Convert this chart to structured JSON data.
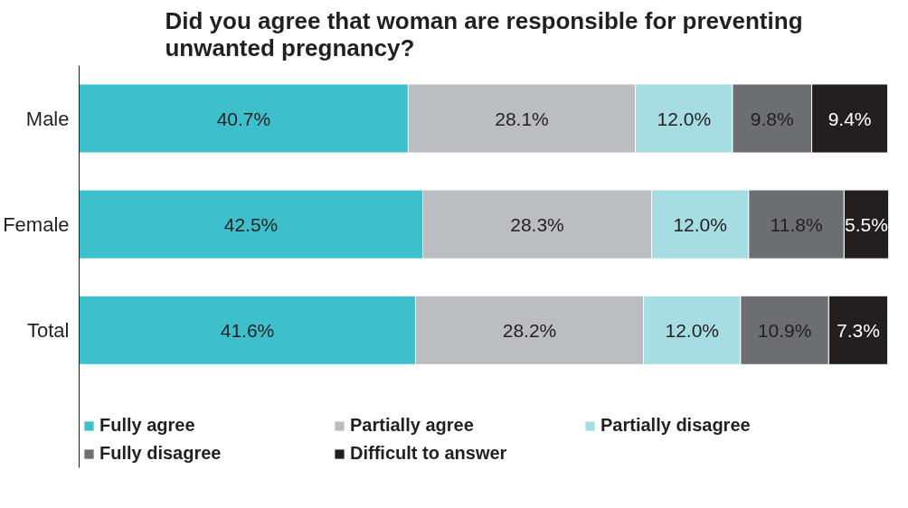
{
  "chart_data": {
    "type": "bar",
    "orientation": "horizontal",
    "stacked": true,
    "title": "Did you agree that woman are responsible for preventing\nunwanted pregnancy?",
    "categories": [
      "Male",
      "Female",
      "Total"
    ],
    "series": [
      {
        "name": "Fully agree",
        "color": "#3ebfcc",
        "values": [
          40.7,
          42.5,
          41.6
        ],
        "value_labels": [
          "40.7%",
          "42.5%",
          "41.6%"
        ]
      },
      {
        "name": "Partially agree",
        "color": "#bcbdc0",
        "values": [
          28.1,
          28.3,
          28.2
        ],
        "value_labels": [
          "28.1%",
          "28.3%",
          "28.2%"
        ]
      },
      {
        "name": "Partially disagree",
        "color": "#a6dde3",
        "values": [
          12.0,
          12.0,
          12.0
        ],
        "value_labels": [
          "12.0%",
          "12.0%",
          "12.0%"
        ]
      },
      {
        "name": "Fully disagree",
        "color": "#6d6e71",
        "values": [
          9.8,
          11.8,
          10.9
        ],
        "value_labels": [
          "9.8%",
          "11.8%",
          "10.9%"
        ]
      },
      {
        "name": "Difficult to answer",
        "color": "#231f20",
        "values": [
          9.4,
          5.5,
          7.3
        ],
        "value_labels": [
          "9.4%",
          "5.5%",
          "7.3%"
        ]
      }
    ],
    "tick_labels": "y",
    "legend": "bottom"
  }
}
